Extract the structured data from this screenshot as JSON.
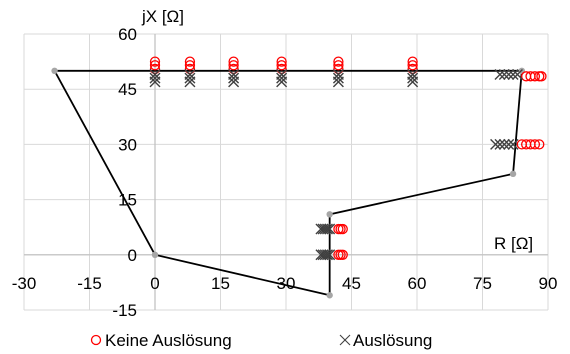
{
  "chart_data": {
    "type": "scatter",
    "xlabel": "R [Ω]",
    "ylabel": "jX [Ω]",
    "xlim": [
      -30,
      90
    ],
    "ylim": [
      -15,
      60
    ],
    "x_ticks": [
      -30,
      -15,
      0,
      15,
      30,
      45,
      60,
      75,
      90
    ],
    "y_ticks": [
      -15,
      0,
      15,
      30,
      45,
      60
    ],
    "x_tick_labels": [
      "-30",
      "-15",
      "0",
      "15",
      "30",
      "45",
      "60",
      "75",
      "90"
    ],
    "y_tick_labels": [
      "-15",
      "0",
      "15",
      "30",
      "45",
      "60"
    ],
    "grid": true,
    "legend_position": "bottom",
    "zone_polygon": {
      "color": "#000000",
      "points": [
        [
          0,
          0
        ],
        [
          -23,
          50
        ],
        [
          84,
          50
        ],
        [
          82,
          22
        ],
        [
          40,
          11
        ],
        [
          40,
          -11
        ],
        [
          0,
          0
        ]
      ]
    },
    "series": [
      {
        "name": "Keine Auslösung",
        "marker": "circle",
        "color": "#ff0000",
        "points": [
          [
            0,
            52.5
          ],
          [
            0,
            51.5
          ],
          [
            0,
            50.5
          ],
          [
            8,
            52.5
          ],
          [
            8,
            51.5
          ],
          [
            8,
            50.5
          ],
          [
            18,
            52.5
          ],
          [
            18,
            51.5
          ],
          [
            18,
            50.5
          ],
          [
            29,
            52.5
          ],
          [
            29,
            51.5
          ],
          [
            29,
            50.5
          ],
          [
            42,
            52.5
          ],
          [
            42,
            51.5
          ],
          [
            42,
            50.5
          ],
          [
            59,
            52.5
          ],
          [
            59,
            51.5
          ],
          [
            59,
            50.5
          ],
          [
            85,
            48.5
          ],
          [
            86,
            48.5
          ],
          [
            87,
            48.5
          ],
          [
            88,
            48.5
          ],
          [
            88.5,
            48.5
          ],
          [
            84,
            30
          ],
          [
            85,
            30
          ],
          [
            86,
            30
          ],
          [
            87,
            30
          ],
          [
            88,
            30
          ],
          [
            42,
            7
          ],
          [
            42.5,
            7
          ],
          [
            43,
            7
          ],
          [
            42,
            0
          ],
          [
            42.5,
            0
          ],
          [
            43,
            0
          ]
        ]
      },
      {
        "name": "Auslösung",
        "marker": "x",
        "color": "#404040",
        "points": [
          [
            0,
            49
          ],
          [
            0,
            48
          ],
          [
            0,
            47
          ],
          [
            8,
            49
          ],
          [
            8,
            48
          ],
          [
            8,
            47
          ],
          [
            18,
            49
          ],
          [
            18,
            48
          ],
          [
            18,
            47
          ],
          [
            29,
            49
          ],
          [
            29,
            48
          ],
          [
            29,
            47
          ],
          [
            42,
            49
          ],
          [
            42,
            48
          ],
          [
            42,
            47
          ],
          [
            59,
            49
          ],
          [
            59,
            48
          ],
          [
            59,
            47
          ],
          [
            79,
            49
          ],
          [
            80,
            49
          ],
          [
            81,
            49
          ],
          [
            82,
            49
          ],
          [
            83,
            49
          ],
          [
            78,
            30
          ],
          [
            79,
            30
          ],
          [
            80,
            30
          ],
          [
            81,
            30
          ],
          [
            82,
            30
          ],
          [
            38,
            7
          ],
          [
            38.5,
            7
          ],
          [
            39,
            7
          ],
          [
            39.5,
            7
          ],
          [
            40,
            7
          ],
          [
            38,
            0
          ],
          [
            38.5,
            0
          ],
          [
            39,
            0
          ],
          [
            39.5,
            0
          ],
          [
            40,
            0
          ]
        ]
      }
    ]
  }
}
